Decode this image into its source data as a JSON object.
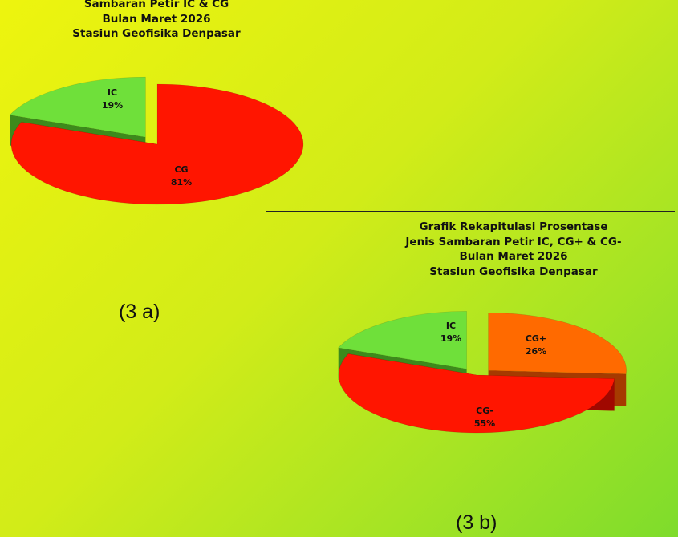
{
  "chart_data": [
    {
      "type": "pie",
      "title_lines": [
        "Sambaran Petir IC & CG",
        "Bulan Maret 2026",
        "Stasiun Geofisika Denpasar"
      ],
      "slices": [
        {
          "label": "IC",
          "value": 19,
          "value_label": "19%",
          "color": "#6fe03a",
          "side_color": "#3d8a1c"
        },
        {
          "label": "CG",
          "value": 81,
          "value_label": "81%",
          "color": "#ff1500",
          "side_color": "#a00800"
        }
      ],
      "caption": "(3 a)"
    },
    {
      "type": "pie",
      "title_lines": [
        "Grafik Rekapitulasi Prosentase",
        "Jenis Sambaran Petir  IC, CG+ & CG-",
        "Bulan Maret 2026",
        "Stasiun Geofisika Denpasar"
      ],
      "slices": [
        {
          "label": "IC",
          "value": 19,
          "value_label": "19%",
          "color": "#6fe03a",
          "side_color": "#3d8a1c"
        },
        {
          "label": "CG+",
          "value": 26,
          "value_label": "26%",
          "color": "#ff6a00",
          "side_color": "#a63a00"
        },
        {
          "label": "CG-",
          "value": 55,
          "value_label": "55%",
          "color": "#ff1500",
          "side_color": "#a00800"
        }
      ],
      "caption": "(3 b)"
    }
  ]
}
